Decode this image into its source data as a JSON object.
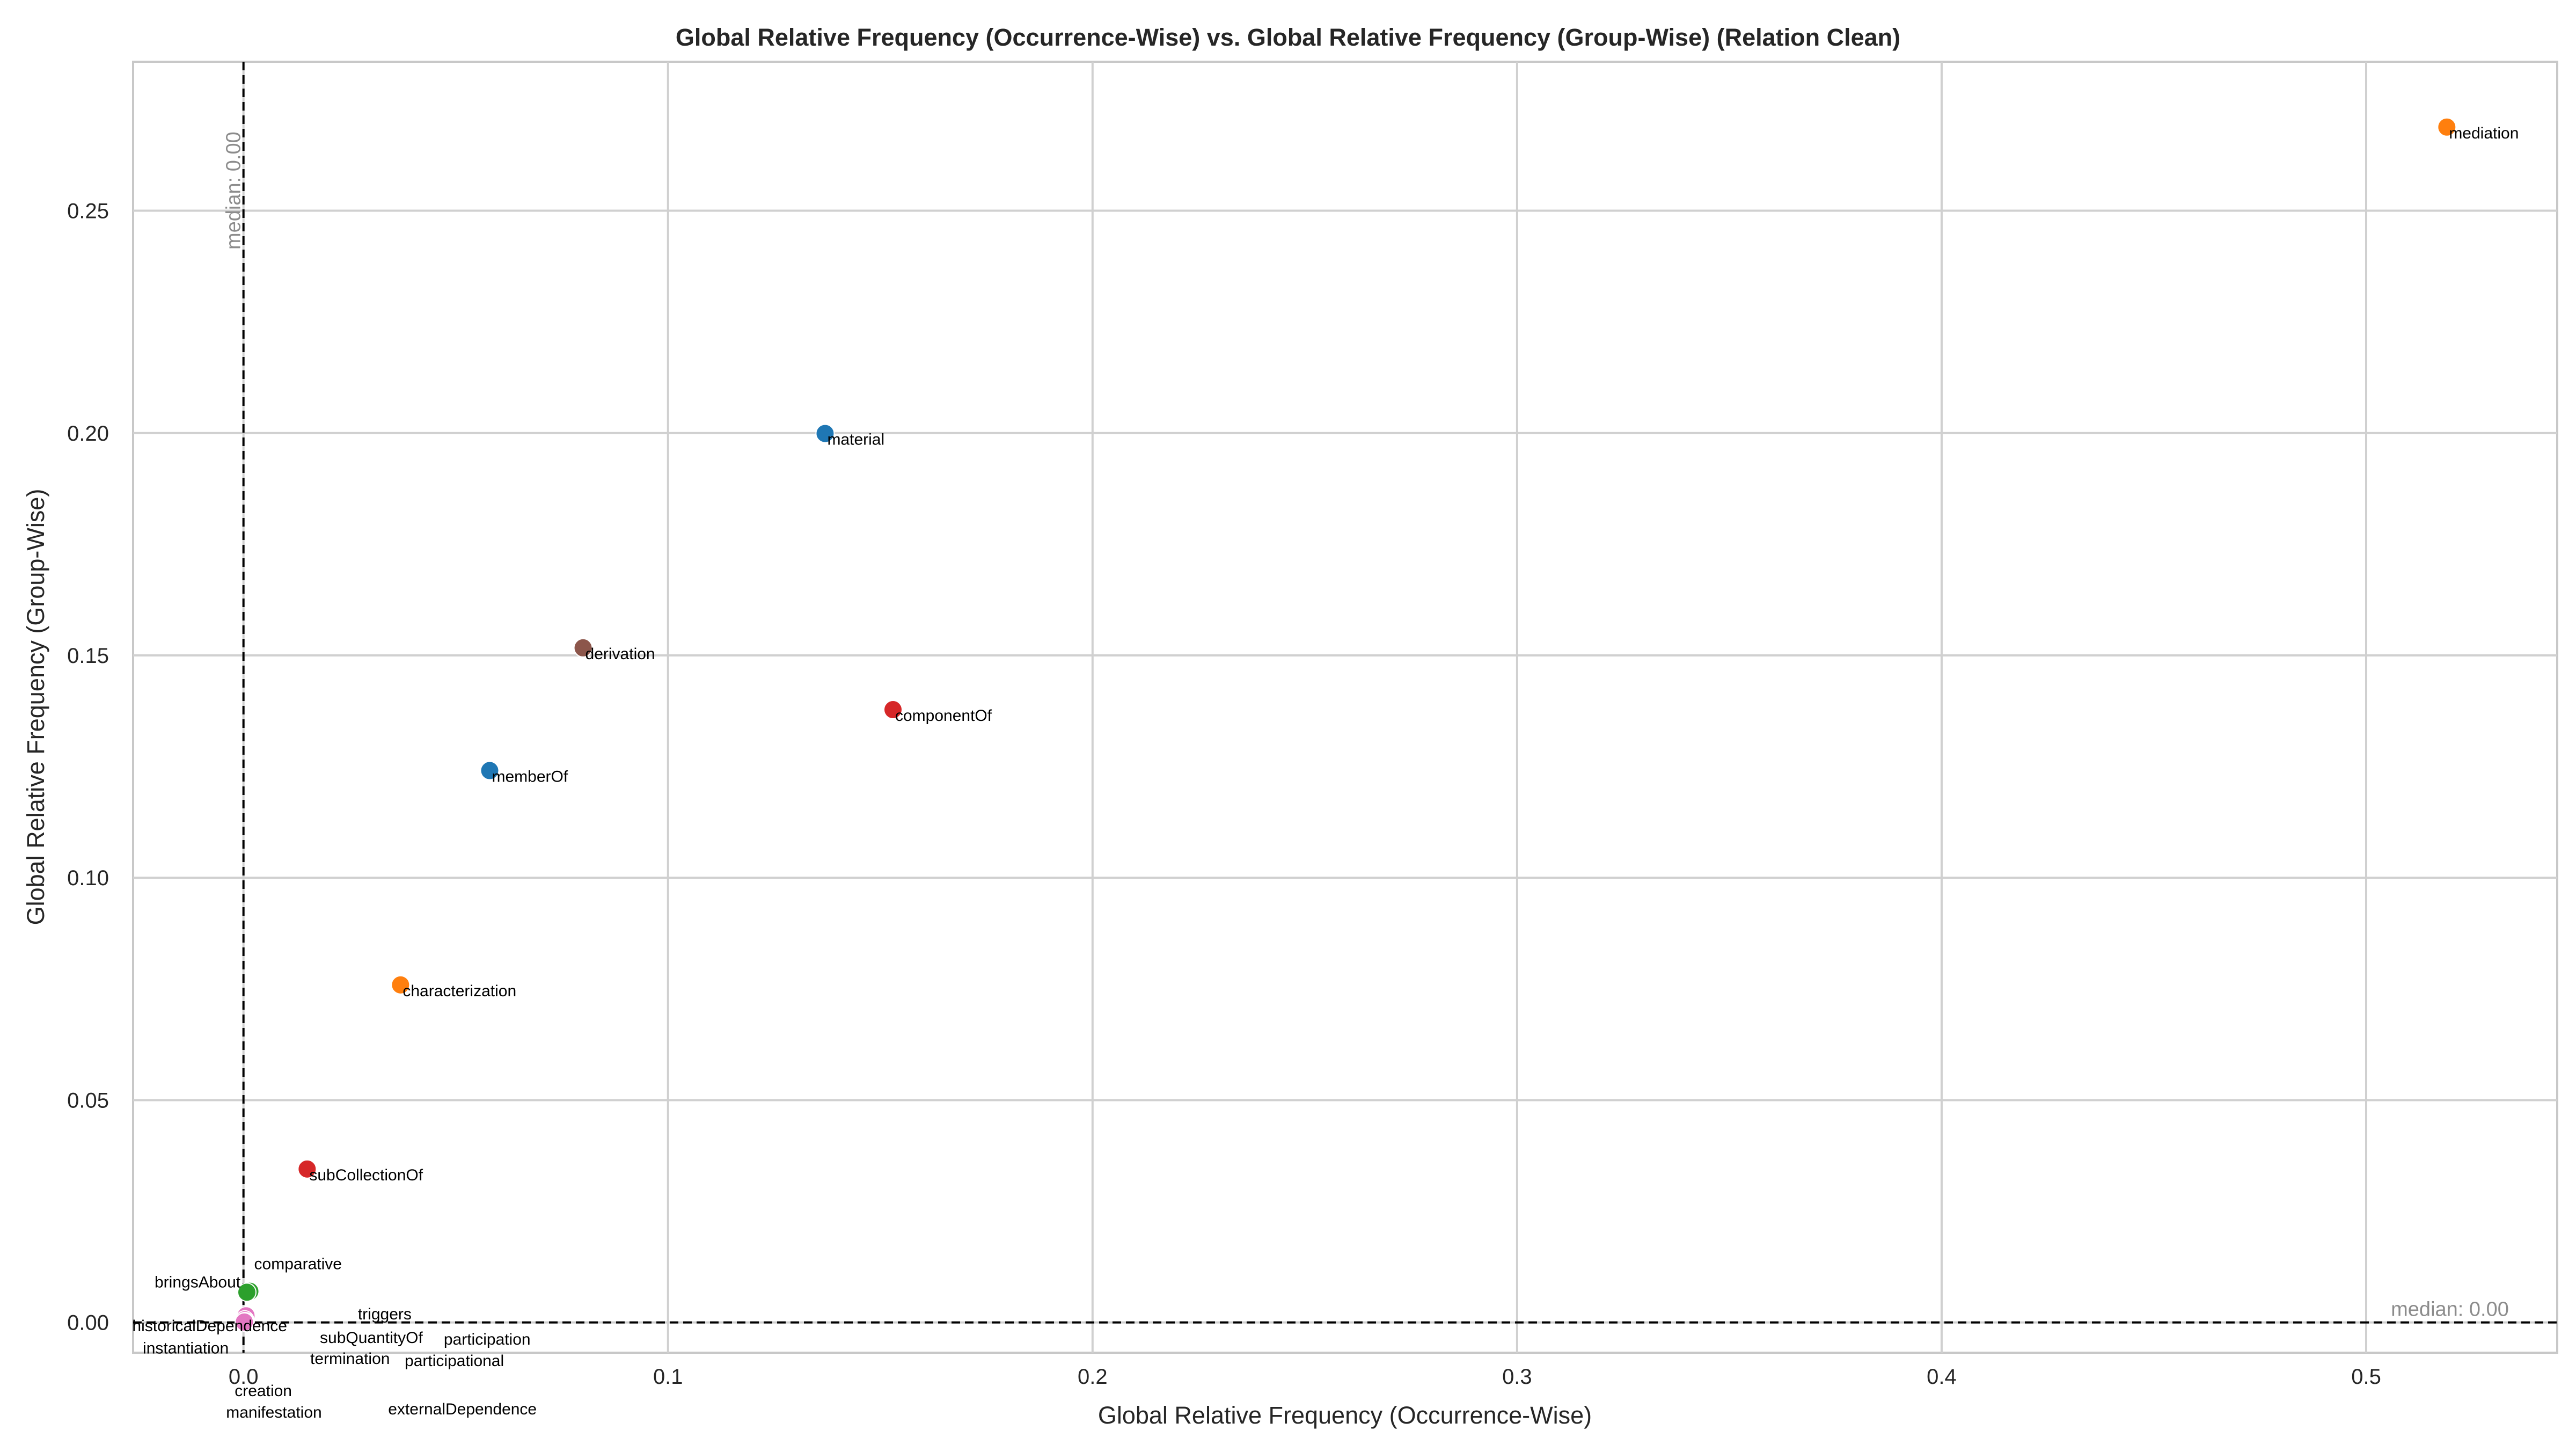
{
  "chart_data": {
    "type": "scatter",
    "title": "Global Relative Frequency (Occurrence-Wise) vs. Global Relative Frequency (Group-Wise) (Relation Clean)",
    "xlabel": "Global Relative Frequency (Occurrence-Wise)",
    "ylabel": "Global Relative Frequency (Group-Wise)",
    "xlim": [
      -0.026,
      0.545
    ],
    "ylim": [
      -0.0068,
      0.2835
    ],
    "x_ticks": [
      0.0,
      0.1,
      0.2,
      0.3,
      0.4,
      0.5
    ],
    "x_tick_labels": [
      "0.0",
      "0.1",
      "0.2",
      "0.3",
      "0.4",
      "0.5"
    ],
    "y_ticks": [
      0.0,
      0.05,
      0.1,
      0.15,
      0.2,
      0.25
    ],
    "y_tick_labels": [
      "0.00",
      "0.05",
      "0.10",
      "0.15",
      "0.20",
      "0.25"
    ],
    "grid": true,
    "median_x": {
      "value": 0.0,
      "label": "median: 0.00"
    },
    "median_y": {
      "value": 0.0,
      "label": "median: 0.00"
    },
    "points": [
      {
        "label": "mediation",
        "x": 0.519,
        "y": 0.2688,
        "color": "#ff7f0e"
      },
      {
        "label": "material",
        "x": 0.137,
        "y": 0.1999,
        "color": "#1f77b4"
      },
      {
        "label": "derivation",
        "x": 0.08,
        "y": 0.1517,
        "color": "#8c564b"
      },
      {
        "label": "componentOf",
        "x": 0.153,
        "y": 0.1378,
        "color": "#d62728"
      },
      {
        "label": "memberOf",
        "x": 0.058,
        "y": 0.1241,
        "color": "#1f77b4"
      },
      {
        "label": "characterization",
        "x": 0.037,
        "y": 0.0759,
        "color": "#ff7f0e"
      },
      {
        "label": "subCollectionOf",
        "x": 0.015,
        "y": 0.0345,
        "color": "#d62728"
      },
      {
        "label": "comparative",
        "x": 0.0015,
        "y": 0.007,
        "color": "#2ca02c"
      },
      {
        "label": "bringsAbout",
        "x": 0.0008,
        "y": 0.0068,
        "color": "#2ca02c"
      },
      {
        "label": "historicalDependence",
        "x": 0.0006,
        "y": 0.0015,
        "color": "#e377c2"
      },
      {
        "label": "instantiation",
        "x": 0.0003,
        "y": 0.0006,
        "color": "#e377c2"
      },
      {
        "label": "triggers",
        "x": 0.0004,
        "y": 0.0002,
        "color": "#e377c2"
      },
      {
        "label": "subQuantityOf",
        "x": 0.0003,
        "y": 0.0002,
        "color": "#e377c2"
      },
      {
        "label": "participation",
        "x": 0.0004,
        "y": 0.0001,
        "color": "#e377c2"
      },
      {
        "label": "termination",
        "x": 0.0003,
        "y": 0.0001,
        "color": "#e377c2"
      },
      {
        "label": "participational",
        "x": 0.0003,
        "y": 0.0001,
        "color": "#e377c2"
      },
      {
        "label": "creation",
        "x": 0.0002,
        "y": 0.0001,
        "color": "#e377c2"
      },
      {
        "label": "manifestation",
        "x": 0.0002,
        "y": 0.0001,
        "color": "#e377c2"
      },
      {
        "label": "externalDependence",
        "x": 0.0002,
        "y": 0.0001,
        "color": "#e377c2"
      }
    ]
  }
}
